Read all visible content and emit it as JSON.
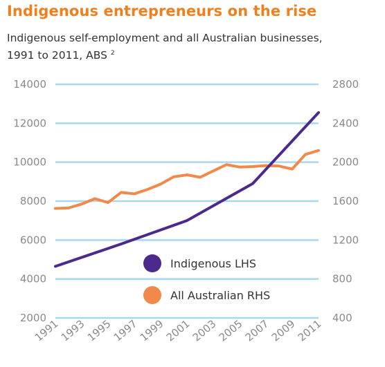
{
  "header": {
    "title": "Indigenous entrepreneurs on the rise",
    "subtitle_line1": "Indigenous self-employment and all Australian businesses,",
    "subtitle_line2": "1991 to 2011, ABS",
    "subtitle_note": "2"
  },
  "colors": {
    "title": "#f07f1e",
    "grid": "#a9d8ee",
    "indigenous": "#4b2a8c",
    "all_australian": "#f0894a",
    "tick": "#8a8a8a"
  },
  "chart_data": {
    "type": "line",
    "title": "Indigenous entrepreneurs on the rise",
    "grid": true,
    "legend_placement": "bottom-center",
    "x_ticks": [
      "1991",
      "1993",
      "1995",
      "1997",
      "1999",
      "2001",
      "2003",
      "2005",
      "2007",
      "2009",
      "2011"
    ],
    "y_left": {
      "min": 2000,
      "max": 14000,
      "ticks": [
        "2000",
        "4000",
        "6000",
        "8000",
        "10000",
        "12000",
        "14000"
      ]
    },
    "y_right": {
      "min": 400,
      "max": 2800,
      "ticks": [
        "400",
        "800",
        "1200",
        "1600",
        "2000",
        "2400",
        "2800"
      ]
    },
    "series": [
      {
        "name": "Indigenous LHS",
        "axis": "left",
        "x": [
          1991,
          1996,
          2001,
          2006,
          2011
        ],
        "values": [
          4650,
          5800,
          7000,
          8900,
          12550
        ]
      },
      {
        "name": "All Australian RHS",
        "axis": "right",
        "x": [
          1991,
          1992,
          1993,
          1994,
          1995,
          1996,
          1997,
          1998,
          1999,
          2000,
          2001,
          2002,
          2003,
          2004,
          2005,
          2006,
          2007,
          2008,
          2009,
          2010,
          2011
        ],
        "values": [
          1525,
          1530,
          1570,
          1625,
          1585,
          1690,
          1675,
          1720,
          1775,
          1850,
          1870,
          1845,
          1910,
          1975,
          1950,
          1955,
          1965,
          1960,
          1930,
          2080,
          2120
        ]
      }
    ]
  }
}
